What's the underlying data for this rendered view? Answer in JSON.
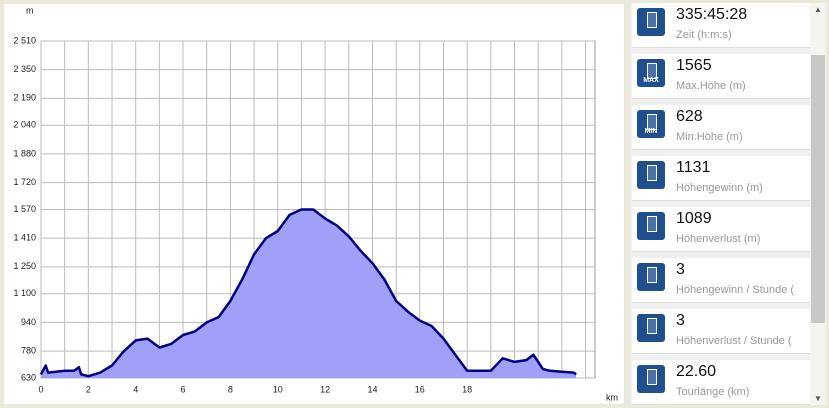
{
  "chart_data": {
    "type": "area",
    "y_unit": "m",
    "x_unit": "km",
    "x": [
      0,
      0.2,
      0.3,
      1,
      1.4,
      1.6,
      1.7,
      2,
      2.5,
      3,
      3.5,
      4,
      4.5,
      5,
      5.5,
      6,
      6.5,
      7,
      7.5,
      8,
      8.5,
      9,
      9.5,
      10,
      10.5,
      11,
      11.5,
      12,
      12.5,
      13,
      13.5,
      14,
      14.5,
      15,
      15.5,
      16,
      16.5,
      17,
      17.5,
      18,
      19,
      19.5,
      20,
      20.5,
      20.8,
      21.2,
      21.5,
      22,
      22.5,
      22.6
    ],
    "values": [
      650,
      700,
      660,
      670,
      670,
      690,
      650,
      640,
      660,
      700,
      780,
      840,
      850,
      800,
      820,
      870,
      890,
      940,
      970,
      1060,
      1180,
      1320,
      1410,
      1450,
      1540,
      1570,
      1570,
      1520,
      1480,
      1420,
      1340,
      1270,
      1180,
      1060,
      1000,
      950,
      920,
      850,
      760,
      670,
      670,
      740,
      720,
      730,
      760,
      680,
      670,
      665,
      660,
      650
    ],
    "fill": "#a0a0f8",
    "line_color": "#000080",
    "xlim": [
      0,
      23.4
    ],
    "xticks": [
      0,
      2,
      4,
      6,
      8,
      10,
      12,
      14,
      16,
      18
    ],
    "xminorticks": [
      1,
      3,
      5,
      7,
      9,
      11,
      13,
      15,
      17,
      19,
      20,
      21,
      22,
      23
    ],
    "ylim": [
      630,
      2510
    ],
    "yticks": [
      630,
      780,
      940,
      {
        "value": 1100,
        "label": "1 100"
      },
      {
        "value": 1250,
        "label": "1 250"
      },
      {
        "value": 1410,
        "label": "1 410"
      },
      {
        "value": 1570,
        "label": "1 570"
      },
      {
        "value": 1720,
        "label": "1 720"
      },
      {
        "value": 1880,
        "label": "1 880"
      },
      {
        "value": 2040,
        "label": "2 040"
      },
      {
        "value": 2190,
        "label": "2 190"
      },
      {
        "value": 2350,
        "label": "2 350"
      },
      {
        "value": 2510,
        "label": "2 510"
      }
    ],
    "grid": true
  },
  "stats": [
    {
      "value": "335:45:28",
      "label": "Zeit (h:m:s)"
    },
    {
      "value": "1565",
      "label": "Max.Höhe (m)",
      "icon": "MAX"
    },
    {
      "value": "628",
      "label": "Min.Höhe (m)",
      "icon": "MIN"
    },
    {
      "value": "1131",
      "label": "Höhengewinn (m)"
    },
    {
      "value": "1089",
      "label": "Höhenverlust (m)"
    },
    {
      "value": "3",
      "label": "Höhengewinn  / Stunde ("
    },
    {
      "value": "3",
      "label": "Höhenverlust  / Stunde ("
    },
    {
      "value": "22.60",
      "label": "Tourlänge (km)"
    }
  ]
}
